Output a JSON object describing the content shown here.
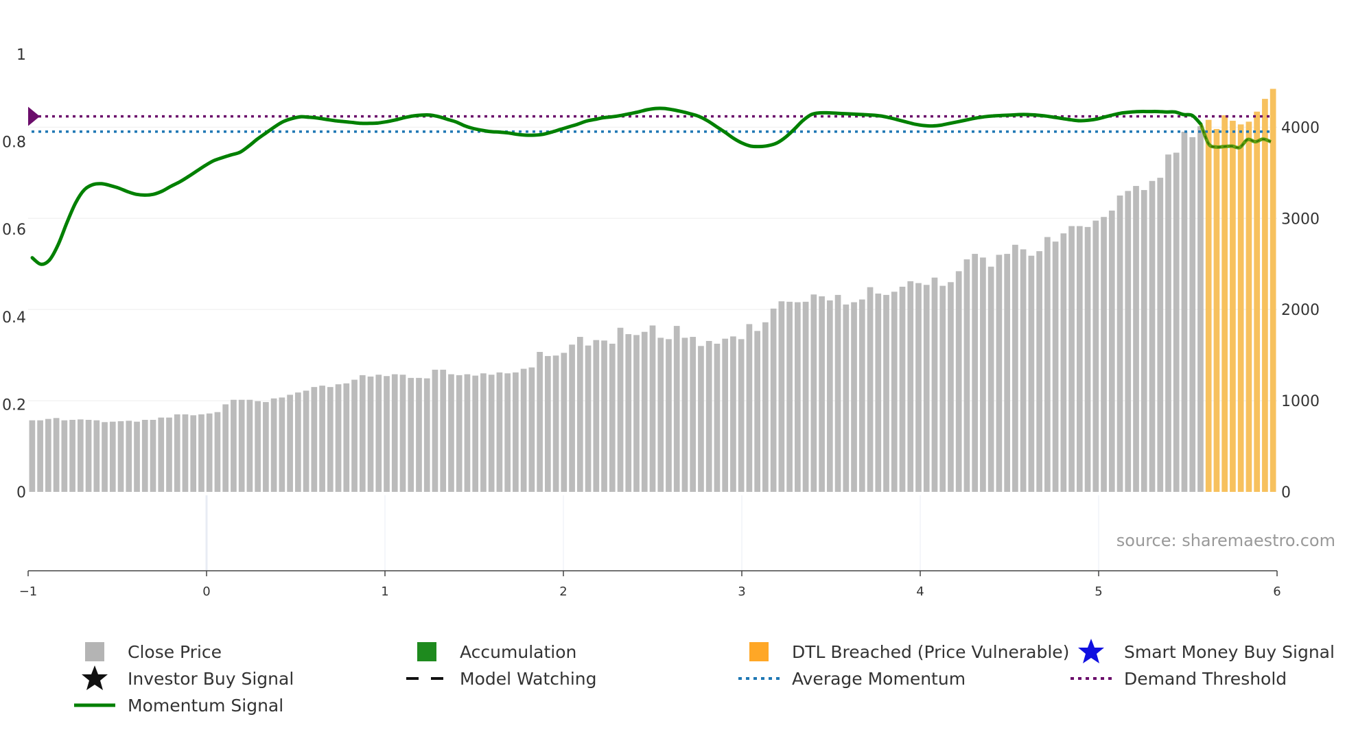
{
  "chart_data": {
    "type": "bar",
    "left_axis": {
      "ticks": [
        "0",
        "0.2",
        "0.4",
        "0.6",
        "0.8",
        "1"
      ],
      "range": [
        0,
        1
      ]
    },
    "right_axis": {
      "ticks": [
        "0",
        "1000",
        "2000",
        "3000",
        "4000"
      ],
      "range": [
        0,
        4800
      ]
    },
    "x_axis": {
      "ticks": [
        "−1",
        "0",
        "1",
        "2",
        "3",
        "4",
        "5",
        "6"
      ],
      "range": [
        -1,
        6
      ]
    },
    "source": "source: sharemaestro.com",
    "series": [
      {
        "name": "Close Price",
        "values": [
          785,
          785,
          800,
          810,
          785,
          790,
          795,
          790,
          785,
          765,
          770,
          775,
          780,
          770,
          790,
          790,
          815,
          815,
          850,
          850,
          840,
          850,
          860,
          875,
          960,
          1010,
          1010,
          1010,
          995,
          985,
          1025,
          1035,
          1065,
          1090,
          1110,
          1150,
          1165,
          1150,
          1180,
          1190,
          1230,
          1280,
          1265,
          1285,
          1270,
          1290,
          1285,
          1250,
          1250,
          1245,
          1340,
          1340,
          1290,
          1280,
          1290,
          1275,
          1300,
          1285,
          1310,
          1300,
          1310,
          1350,
          1365,
          1535,
          1490,
          1495,
          1525,
          1615,
          1700,
          1605,
          1665,
          1660,
          1625,
          1800,
          1730,
          1720,
          1755,
          1825,
          1690,
          1675,
          1820,
          1690,
          1700,
          1600,
          1655,
          1625,
          1680,
          1705,
          1675,
          1840,
          1765,
          1860,
          2010,
          2090,
          2085,
          2080,
          2085,
          2165,
          2145,
          2100,
          2160,
          2055,
          2080,
          2110,
          2245,
          2175,
          2160,
          2195,
          2250,
          2310,
          2290,
          2270,
          2350,
          2260,
          2300,
          2420,
          2550,
          2610,
          2570,
          2470,
          2600,
          2610,
          2710,
          2660,
          2590,
          2640,
          2795,
          2745,
          2835,
          2915,
          2915,
          2905,
          2975,
          3015,
          3085,
          3250,
          3300,
          3355,
          3310,
          3410,
          3445,
          3700,
          3720,
          3950,
          3890,
          4010
        ],
        "color": "#bbbbbb"
      },
      {
        "name": "DTL Breached (Price Vulnerable)",
        "values": [
          4080,
          3980,
          4130,
          4070,
          4030,
          4060,
          4170,
          4310,
          4420
        ],
        "color": "#f7c15e"
      },
      {
        "name": "Momentum Signal",
        "values": [
          0.535,
          0.52,
          0.53,
          0.565,
          0.615,
          0.66,
          0.69,
          0.702,
          0.704,
          0.7,
          0.694,
          0.686,
          0.68,
          0.678,
          0.68,
          0.687,
          0.698,
          0.708,
          0.72,
          0.733,
          0.746,
          0.757,
          0.764,
          0.77,
          0.776,
          0.79,
          0.806,
          0.82,
          0.834,
          0.846,
          0.853,
          0.857,
          0.856,
          0.854,
          0.851,
          0.848,
          0.846,
          0.844,
          0.842,
          0.842,
          0.843,
          0.846,
          0.85,
          0.855,
          0.859,
          0.861,
          0.861,
          0.857,
          0.851,
          0.845,
          0.836,
          0.83,
          0.826,
          0.823,
          0.822,
          0.82,
          0.817,
          0.815,
          0.815,
          0.817,
          0.822,
          0.828,
          0.834,
          0.84,
          0.847,
          0.851,
          0.855,
          0.857,
          0.86,
          0.864,
          0.868,
          0.873,
          0.876,
          0.876,
          0.873,
          0.869,
          0.864,
          0.858,
          0.848,
          0.835,
          0.822,
          0.808,
          0.797,
          0.79,
          0.789,
          0.791,
          0.797,
          0.81,
          0.828,
          0.848,
          0.862,
          0.866,
          0.866,
          0.865,
          0.864,
          0.863,
          0.862,
          0.861,
          0.859,
          0.855,
          0.85,
          0.845,
          0.84,
          0.837,
          0.836,
          0.838,
          0.842,
          0.846,
          0.85,
          0.854,
          0.857,
          0.859,
          0.86,
          0.861,
          0.862,
          0.862,
          0.861,
          0.859,
          0.856,
          0.853,
          0.85,
          0.848,
          0.849,
          0.852,
          0.857,
          0.862,
          0.866,
          0.868,
          0.869,
          0.869,
          0.869,
          0.868,
          0.868,
          0.862,
          0.86,
          0.84
        ],
        "color": "#008000"
      },
      {
        "name": "Momentum Signal (DTL breached)",
        "values": [
          0.84,
          0.795,
          0.788,
          0.789,
          0.79,
          0.787,
          0.805,
          0.8,
          0.806,
          0.8
        ],
        "color": "#5e9e10"
      },
      {
        "name": "Average Momentum",
        "values": [
          0.823
        ],
        "color": "#1f77b4"
      },
      {
        "name": "Demand Threshold",
        "values": [
          0.858
        ],
        "color": "#6b0d6b"
      }
    ]
  },
  "legend": [
    {
      "label": "Close Price",
      "icon": "square",
      "color": "#b4b4b4"
    },
    {
      "label": "Accumulation",
      "icon": "square",
      "color": "#1e8a1e"
    },
    {
      "label": "DTL Breached (Price Vulnerable)",
      "icon": "square",
      "color": "#ffa726"
    },
    {
      "label": "Smart Money Buy Signal",
      "icon": "star",
      "color": "#1010e0"
    },
    {
      "label": "Investor Buy Signal",
      "icon": "star",
      "color": "#111111"
    },
    {
      "label": "Model Watching",
      "icon": "dashed-line",
      "color": "#111111"
    },
    {
      "label": "Average Momentum",
      "icon": "dotted-line",
      "color": "#1f77b4"
    },
    {
      "label": "Demand Threshold",
      "icon": "dotted-line",
      "color": "#6b0d6b"
    },
    {
      "label": "Momentum Signal",
      "icon": "solid-line",
      "color": "#008000"
    }
  ]
}
